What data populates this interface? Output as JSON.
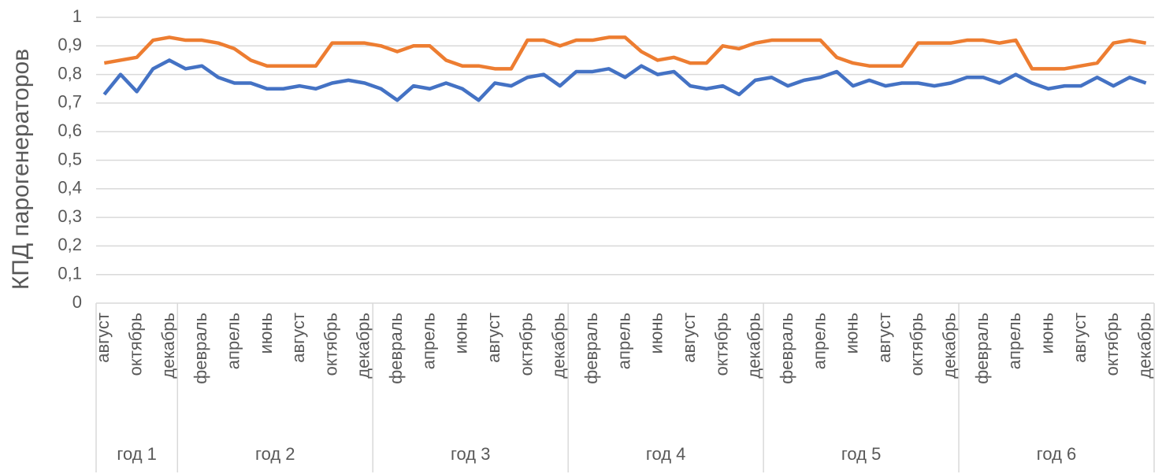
{
  "chart_data": {
    "type": "line",
    "y_label": "КПД парогенераторов",
    "categories": [
      "август",
      null,
      "октябрь",
      null,
      "декабрь",
      null,
      "февраль",
      null,
      "апрель",
      null,
      "июнь",
      null,
      "август",
      null,
      "октябрь",
      null,
      "декабрь",
      null,
      "февраль",
      null,
      "апрель",
      null,
      "июнь",
      null,
      "август",
      null,
      "октябрь",
      null,
      "декабрь",
      null,
      "февраль",
      null,
      "апрель",
      null,
      "июнь",
      null,
      "август",
      null,
      "октябрь",
      null,
      "декабрь",
      null,
      "февраль",
      null,
      "апрель",
      null,
      "июнь",
      null,
      "август",
      null,
      "октябрь",
      null,
      "декабрь",
      null,
      "февраль",
      null,
      "апрель",
      null,
      "июнь",
      null,
      "август",
      null,
      "октябрь",
      null,
      "декабрь"
    ],
    "groups": [
      "год 1",
      "год 2",
      "год 3",
      "год 4",
      "год 5",
      "год 6"
    ],
    "series": [
      {
        "color": "#4472c4",
        "values": [
          0.73,
          0.8,
          0.74,
          0.82,
          0.85,
          0.82,
          0.83,
          0.79,
          0.77,
          0.77,
          0.75,
          0.75,
          0.76,
          0.75,
          0.77,
          0.78,
          0.77,
          0.75,
          0.71,
          0.76,
          0.75,
          0.77,
          0.75,
          0.71,
          0.77,
          0.76,
          0.79,
          0.8,
          0.76,
          0.81,
          0.81,
          0.82,
          0.79,
          0.83,
          0.8,
          0.81,
          0.76,
          0.75,
          0.76,
          0.73,
          0.78,
          0.79,
          0.76,
          0.78,
          0.79,
          0.81,
          0.76,
          0.78,
          0.76,
          0.77,
          0.77,
          0.76,
          0.77,
          0.79,
          0.79,
          0.77,
          0.8,
          0.77,
          0.75,
          0.76,
          0.76,
          0.79,
          0.76,
          0.79,
          0.77
        ]
      },
      {
        "color": "#ed7d31",
        "values": [
          0.84,
          0.85,
          0.86,
          0.92,
          0.93,
          0.92,
          0.92,
          0.91,
          0.89,
          0.85,
          0.83,
          0.83,
          0.83,
          0.83,
          0.91,
          0.91,
          0.91,
          0.9,
          0.88,
          0.9,
          0.9,
          0.85,
          0.83,
          0.83,
          0.82,
          0.82,
          0.92,
          0.92,
          0.9,
          0.92,
          0.92,
          0.93,
          0.93,
          0.88,
          0.85,
          0.86,
          0.84,
          0.84,
          0.9,
          0.89,
          0.91,
          0.92,
          0.92,
          0.92,
          0.92,
          0.86,
          0.84,
          0.83,
          0.83,
          0.83,
          0.91,
          0.91,
          0.91,
          0.92,
          0.92,
          0.91,
          0.92,
          0.82,
          0.82,
          0.82,
          0.83,
          0.84,
          0.91,
          0.92,
          0.91
        ]
      }
    ],
    "ylim": [
      0,
      1
    ],
    "yticks": [
      0,
      {
        "value": 0.1,
        "label": "0,1"
      },
      {
        "value": 0.2,
        "label": "0,2"
      },
      {
        "value": 0.3,
        "label": "0,3"
      },
      {
        "value": 0.4,
        "label": "0,4"
      },
      {
        "value": 0.5,
        "label": "0,5"
      },
      {
        "value": 0.6,
        "label": "0,6"
      },
      {
        "value": 0.7,
        "label": "0,7"
      },
      {
        "value": 0.8,
        "label": "0,8"
      },
      {
        "value": 0.9,
        "label": "0,9"
      },
      1
    ],
    "grid": true
  }
}
